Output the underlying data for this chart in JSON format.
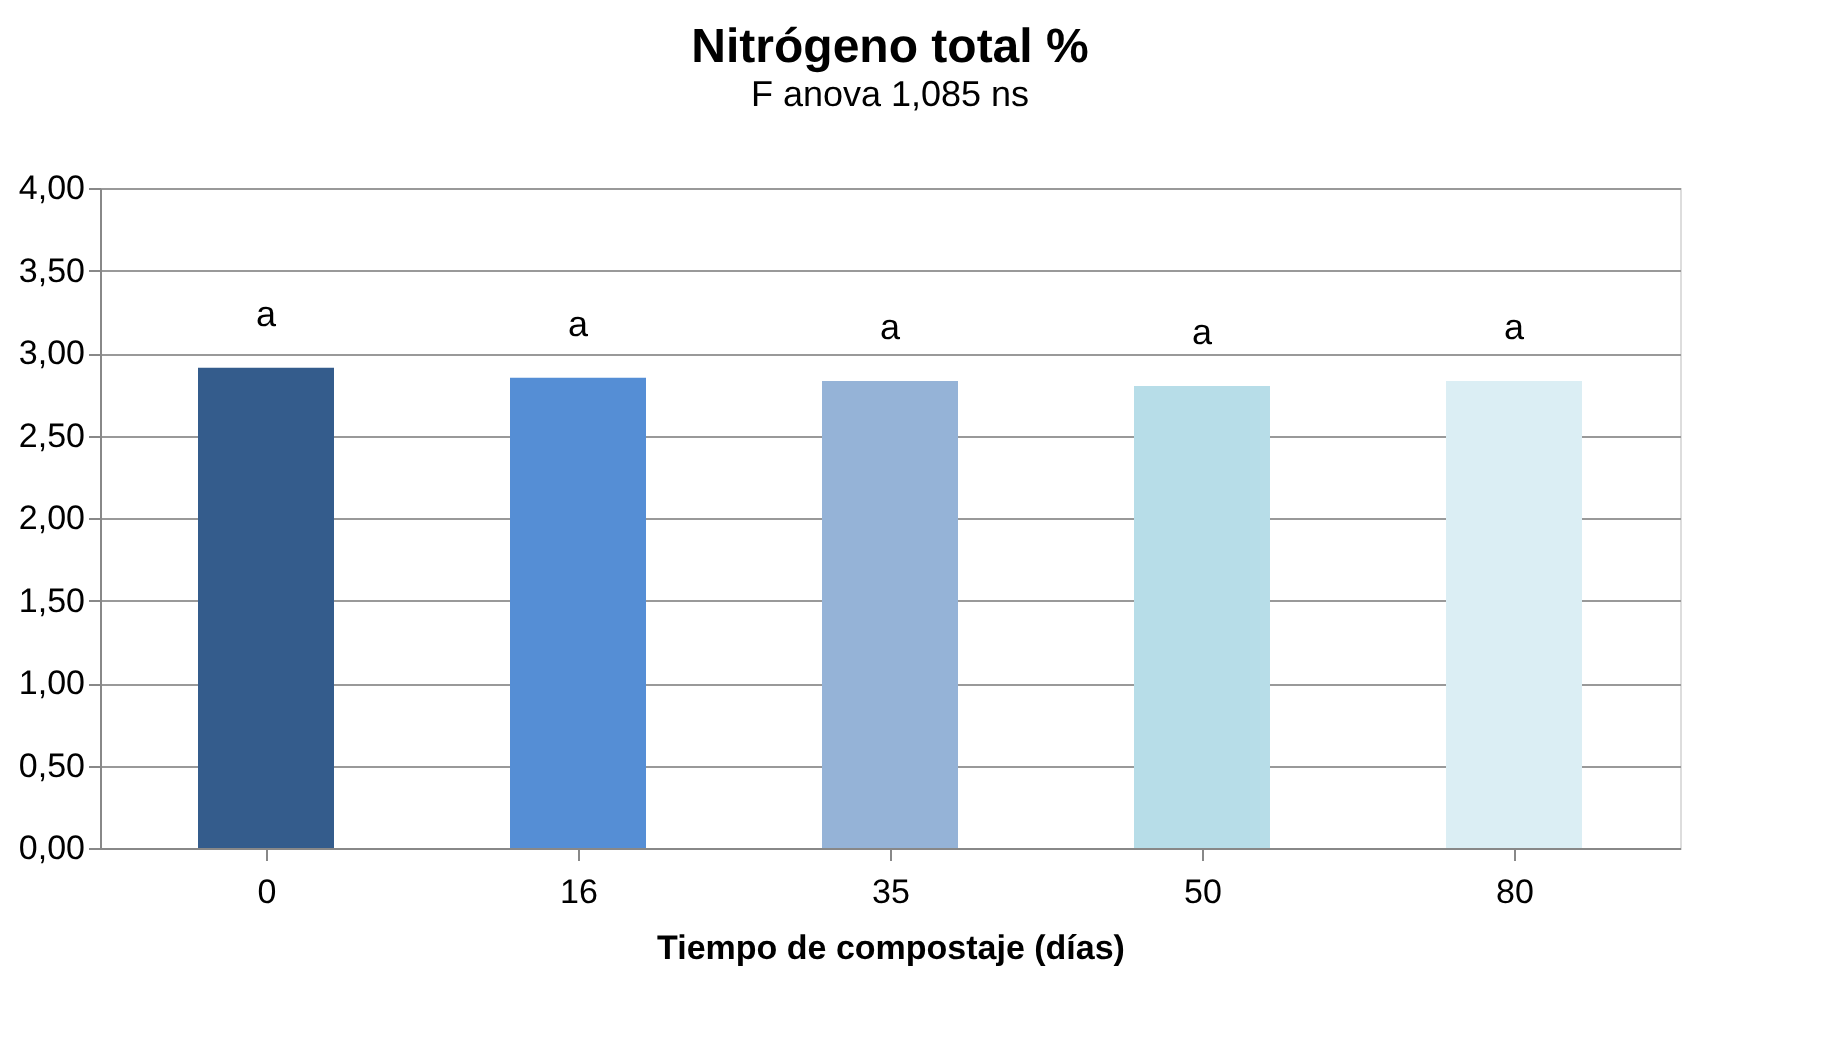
{
  "chart_data": {
    "type": "bar",
    "title": "Nitrógeno total %",
    "subtitle": "F anova 1,085 ns",
    "xlabel": "Tiempo de compostaje (días)",
    "categories": [
      "0",
      "16",
      "35",
      "50",
      "80"
    ],
    "values": [
      2.91,
      2.85,
      2.83,
      2.8,
      2.83
    ],
    "colors": [
      "#345c8c",
      "#558ed5",
      "#95b3d7",
      "#b7dde8",
      "#dbeef4"
    ],
    "ylim": [
      0,
      4
    ],
    "yticks": [
      {
        "value": 0,
        "label": "0,00"
      },
      {
        "value": 0.5,
        "label": "0,50"
      },
      {
        "value": 1,
        "label": "1,00"
      },
      {
        "value": 1.5,
        "label": "1,50"
      },
      {
        "value": 2,
        "label": "2,00"
      },
      {
        "value": 2.5,
        "label": "2,50"
      },
      {
        "value": 3,
        "label": "3,00"
      },
      {
        "value": 3.5,
        "label": "3,50"
      },
      {
        "value": 4,
        "label": "4,00"
      }
    ],
    "grid": "y",
    "legend": false,
    "annotations": [
      {
        "text": "a",
        "x": "0",
        "y": 2.91
      },
      {
        "text": "a",
        "x": "16",
        "y": 2.85
      },
      {
        "text": "a",
        "x": "35",
        "y": 2.83
      },
      {
        "text": "a",
        "x": "50",
        "y": 2.8
      },
      {
        "text": "a",
        "x": "80",
        "y": 2.83
      }
    ]
  }
}
